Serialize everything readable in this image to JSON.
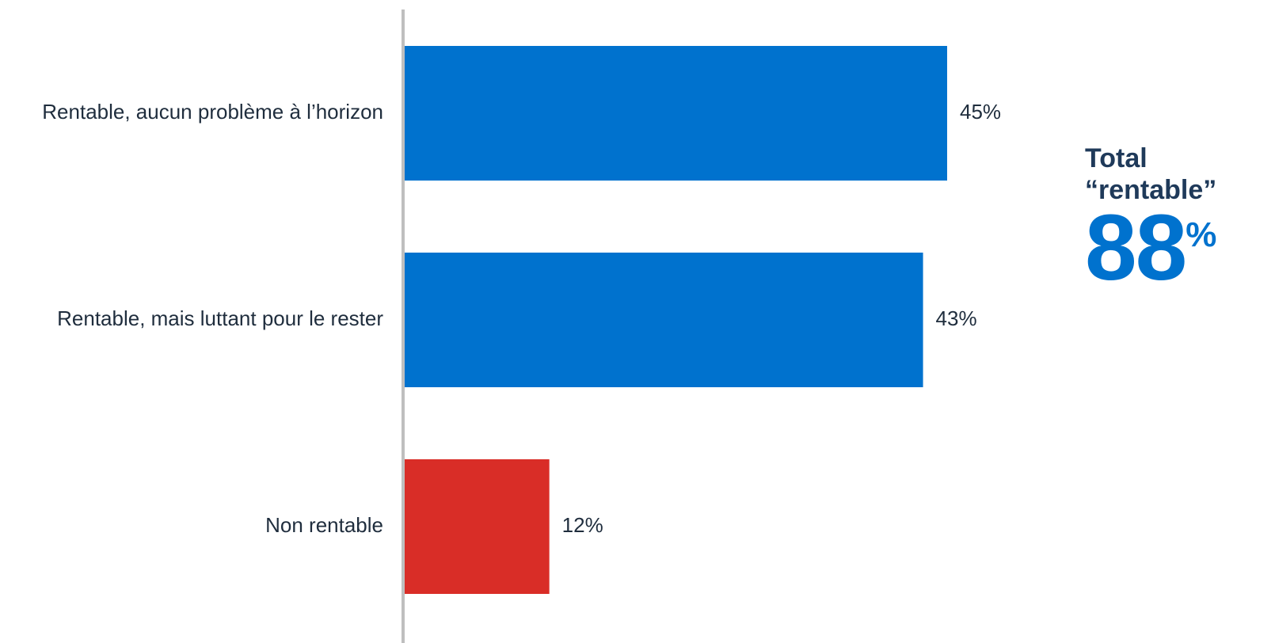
{
  "chart_data": {
    "type": "bar",
    "orientation": "horizontal",
    "categories": [
      "Rentable, aucun problème à l’horizon",
      "Rentable, mais luttant pour le rester",
      "Non rentable"
    ],
    "values": [
      45,
      43,
      12
    ],
    "value_labels": [
      "45%",
      "43%",
      "12%"
    ],
    "unit": "%",
    "colors": [
      "#0072ce",
      "#0072ce",
      "#d92d27"
    ],
    "axis_color": "#bfbfbf",
    "xlim": [
      0,
      45
    ],
    "grid": false,
    "legend": "none"
  },
  "summary": {
    "line1": "Total",
    "line2": "“rentable”",
    "value": "88",
    "unit": "%",
    "color": "#0072ce"
  }
}
